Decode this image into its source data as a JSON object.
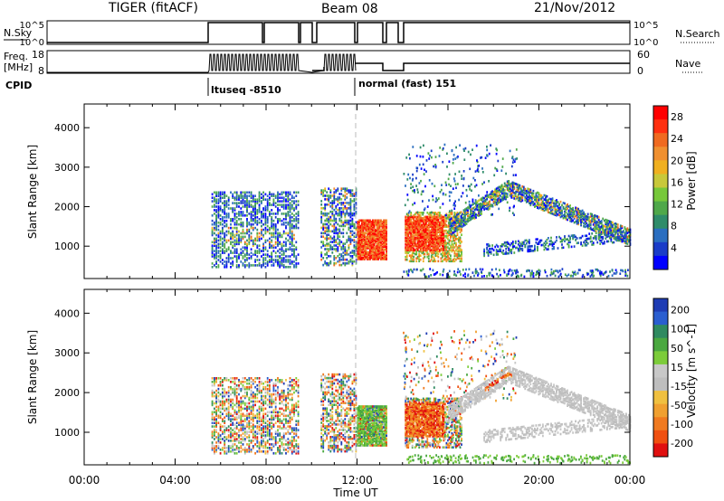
{
  "header": {
    "title": "TIGER (fitACF)",
    "beam": "Beam 08",
    "date": "21/Nov/2012"
  },
  "strips": {
    "nsky_label": "N.Sky",
    "nsky_ticks": [
      "10^5",
      "10^0"
    ],
    "nsearch_label": "N.Search",
    "nsearch_ticks": [
      "10^5",
      "10^0"
    ],
    "freq_label_1": "Freq.",
    "freq_label_2": "[MHz]",
    "freq_ticks": [
      "18",
      "8"
    ],
    "nave_label": "Nave",
    "nave_ticks": [
      "60",
      "0"
    ],
    "cpid_label": "CPID",
    "cpid_segments": [
      "ltuseq -8510",
      "normal (fast) 151"
    ]
  },
  "chart_data": [
    {
      "type": "heatmap",
      "name": "power",
      "ylabel": "Slant Range [km]",
      "y_ticks": [
        1000,
        2000,
        3000,
        4000
      ],
      "ylim": [
        180,
        4600
      ],
      "colorbar_label": "Power [dB]",
      "colorbar_ticks": [
        "4",
        "8",
        "12",
        "16",
        "20",
        "24",
        "28"
      ],
      "colorbar_colors": [
        "#0000ff",
        "#1a3cc8",
        "#2a6ec0",
        "#2f8c6a",
        "#4fa84a",
        "#77c83a",
        "#c8c83a",
        "#f0b020",
        "#f09030",
        "#f06a20",
        "#ff3010",
        "#ff0000"
      ]
    },
    {
      "type": "heatmap",
      "name": "velocity",
      "ylabel": "Slant Range [km]",
      "y_ticks": [
        1000,
        2000,
        3000,
        4000
      ],
      "ylim": [
        180,
        4600
      ],
      "colorbar_label": "Velocity [m s^-1]",
      "colorbar_ticks": [
        "200",
        "100",
        "50",
        "15",
        "-15",
        "-50",
        "-100",
        "-200"
      ],
      "colorbar_colors": [
        "#1e3cb4",
        "#2a5ed0",
        "#2f8a60",
        "#4aa840",
        "#7ccc3a",
        "#c8c8c8",
        "#bebebe",
        "#f0c040",
        "#f0a030",
        "#f07a20",
        "#f05010",
        "#e01010"
      ]
    }
  ],
  "x_axis": {
    "label": "Time UT",
    "ticks": [
      "00:00",
      "04:00",
      "08:00",
      "12:00",
      "16:00",
      "20:00",
      "00:00"
    ]
  }
}
